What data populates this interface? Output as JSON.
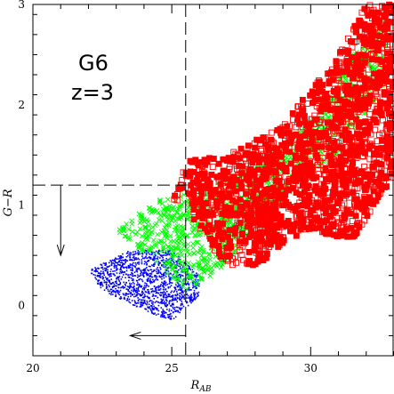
{
  "chart_data": {
    "type": "scatter",
    "xlabel": "R",
    "xlabel_sub": "AB",
    "ylabel": "G−R",
    "xlim": [
      20,
      33
    ],
    "ylim": [
      -0.5,
      3
    ],
    "x_ticks": [
      20,
      25,
      30
    ],
    "y_ticks": [
      0,
      1,
      2,
      3
    ],
    "annotations": [
      "G6",
      "z=3"
    ],
    "reference_lines": {
      "vertical_x": 25.5,
      "horizontal_y": 1.2,
      "vertical_arrow": {
        "x": 21,
        "from_y": 1.2,
        "to_y": 0.5
      },
      "horizontal_arrow": {
        "y": -0.3,
        "from_x": 25.5,
        "to_x": 23.5
      }
    },
    "series": [
      {
        "marker": "dot",
        "color": "#0000ff",
        "region": [
          [
            22.0,
            0.35
          ],
          [
            23.5,
            0.55
          ],
          [
            25.0,
            0.55
          ],
          [
            26.0,
            0.3
          ],
          [
            26.0,
            0.1
          ],
          [
            25.0,
            -0.15
          ],
          [
            24.0,
            -0.05
          ],
          [
            22.5,
            0.15
          ]
        ]
      },
      {
        "marker": "x",
        "color": "#00ff00",
        "region": [
          [
            23.0,
            0.75
          ],
          [
            24.5,
            1.05
          ],
          [
            26.0,
            1.15
          ],
          [
            28.5,
            1.45
          ],
          [
            30.5,
            2.0
          ],
          [
            32.0,
            2.7
          ],
          [
            32.7,
            3.0
          ],
          [
            32.7,
            2.2
          ],
          [
            31.0,
            1.5
          ],
          [
            29.0,
            1.05
          ],
          [
            27.5,
            0.6
          ],
          [
            26.5,
            0.3
          ],
          [
            25.5,
            0.15
          ],
          [
            24.5,
            0.4
          ]
        ]
      },
      {
        "marker": "square",
        "color": "#ff0000",
        "region": [
          [
            25.0,
            1.05
          ],
          [
            25.6,
            1.45
          ],
          [
            27.0,
            1.5
          ],
          [
            29.0,
            1.8
          ],
          [
            31.0,
            2.5
          ],
          [
            32.0,
            3.0
          ],
          [
            33.0,
            3.0
          ],
          [
            33.0,
            1.3
          ],
          [
            31.5,
            0.65
          ],
          [
            30.0,
            0.75
          ],
          [
            28.0,
            0.4
          ],
          [
            27.0,
            0.4
          ],
          [
            26.0,
            0.7
          ],
          [
            25.6,
            1.0
          ]
        ]
      }
    ]
  }
}
